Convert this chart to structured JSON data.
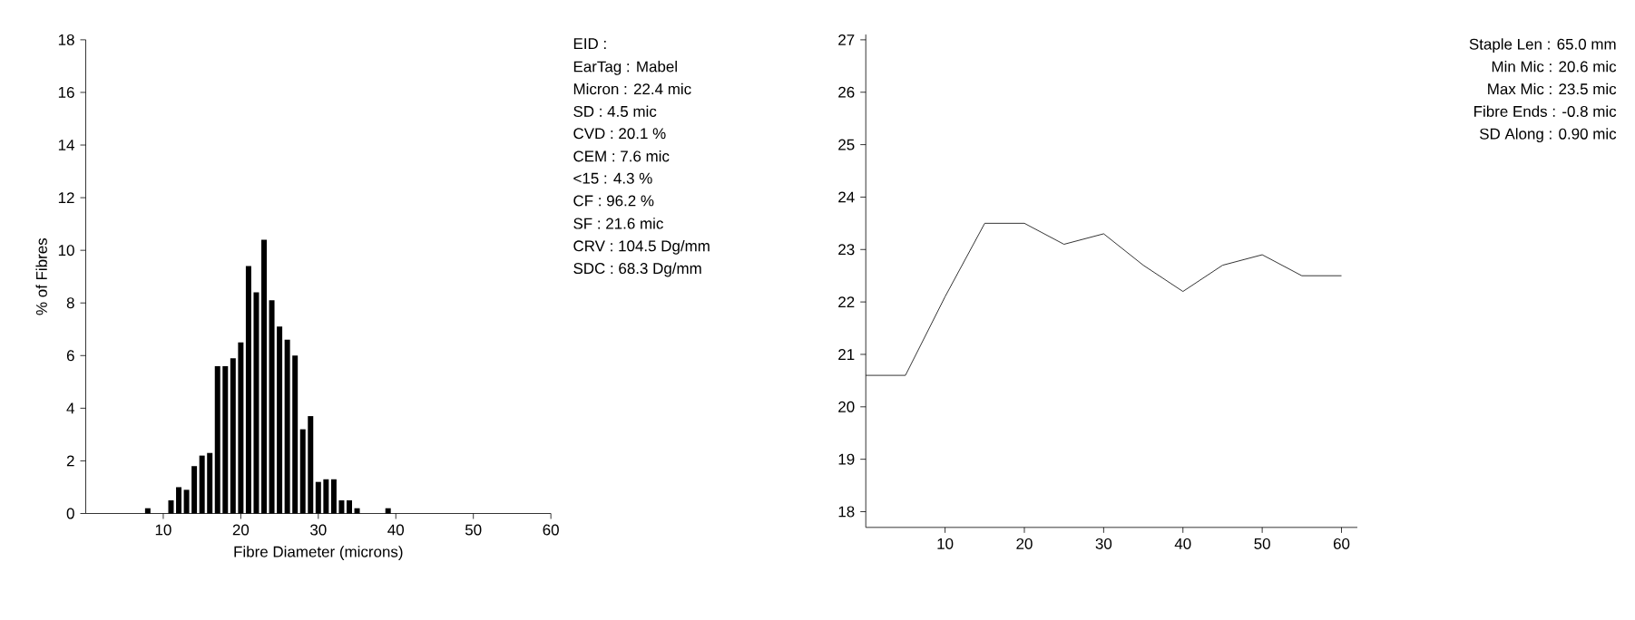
{
  "chart_data": [
    {
      "type": "histogram",
      "xlabel": "Fibre Diameter (microns)",
      "ylabel": "% of Fibres",
      "color": "#000000",
      "bins": [
        7.5,
        8.5,
        9.5,
        10.5,
        11.5,
        12.5,
        13.5,
        14.5,
        15.5,
        16.5,
        17.5,
        18.5,
        19.5,
        20.5,
        21.5,
        22.5,
        23.5,
        24.5,
        25.5,
        26.5,
        27.5,
        28.5,
        29.5,
        30.5,
        31.5,
        32.5,
        33.5,
        34.5,
        35.5,
        36.5,
        37.5,
        38.5,
        39.5
      ],
      "values": [
        0.2,
        0,
        0,
        0.5,
        1.0,
        0.9,
        1.8,
        2.2,
        2.3,
        5.6,
        5.6,
        5.9,
        6.5,
        9.4,
        8.4,
        10.4,
        8.1,
        7.1,
        6.6,
        6.0,
        3.2,
        3.7,
        1.2,
        1.3,
        1.3,
        0.5,
        0.5,
        0.2,
        0,
        0,
        0,
        0.2
      ],
      "xlim": [
        0,
        60
      ],
      "ylim": [
        0,
        18
      ],
      "xticks": [
        10,
        20,
        30,
        40,
        50,
        60
      ],
      "yticks": [
        0,
        2,
        4,
        6,
        8,
        10,
        12,
        14,
        16,
        18
      ]
    },
    {
      "type": "other",
      "annotations": [
        "EID :",
        "EarTag : Mabel",
        "Micron :  22.4 mic",
        "SD :    4.5 mic",
        "CVD :  20.1 %",
        "CEM :    7.6 mic",
        "<15 :    4.3 %",
        "CF :  96.2 %",
        "SF :  21.6 mic",
        "CRV : 104.5 Dg/mm",
        "SDC :  68.3 Dg/mm"
      ]
    },
    {
      "type": "line",
      "color": "#000000",
      "x": [
        0,
        5,
        10,
        15,
        20,
        25,
        30,
        35,
        40,
        45,
        50,
        55,
        60
      ],
      "values": [
        20.6,
        20.6,
        22.1,
        23.5,
        23.5,
        23.1,
        23.3,
        22.7,
        22.2,
        22.7,
        22.9,
        22.5,
        22.5
      ],
      "xlim": [
        0,
        62
      ],
      "ylim": [
        17.7,
        27.1
      ],
      "xticks": [
        10,
        20,
        30,
        40,
        50,
        60
      ],
      "yticks": [
        18,
        19,
        20,
        21,
        22,
        23,
        24,
        25,
        26,
        27
      ]
    },
    {
      "type": "other",
      "annotations": [
        "Staple Len :  65.0 mm",
        "Min Mic :  20.6 mic",
        "Max Mic :  23.5 mic",
        "Fibre Ends :  -0.8 mic",
        "SD Along :  0.90 mic"
      ]
    }
  ]
}
